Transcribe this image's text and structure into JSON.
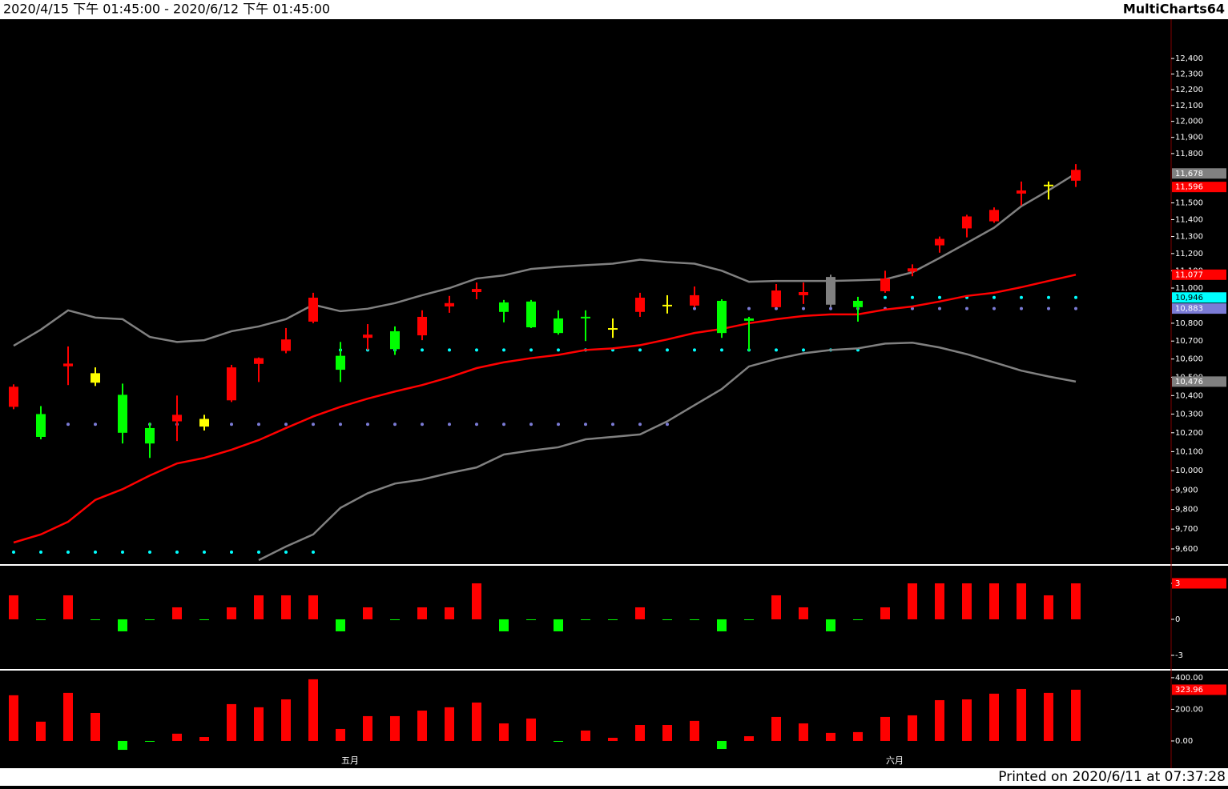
{
  "header": {
    "range": "2020/4/15 下午 01:45:00 - 2020/6/12 下午 01:45:00",
    "brand": "MultiCharts64"
  },
  "footer": "Printed on 2020/6/11 at 07:37:28",
  "chart_data": [
    {
      "type": "candlestick",
      "log_scale": true,
      "categories": [
        null,
        null,
        null,
        null,
        null,
        null,
        null,
        null,
        null,
        null,
        null,
        null,
        "五月",
        null,
        null,
        null,
        null,
        null,
        null,
        null,
        null,
        null,
        null,
        null,
        null,
        null,
        null,
        null,
        null,
        null,
        null,
        null,
        "六月",
        null,
        null,
        null,
        null,
        null,
        null,
        null
      ],
      "open": [
        10339,
        10300,
        10560,
        10522,
        10404,
        10225,
        10261,
        10274,
        10374,
        10573,
        10645,
        10809,
        10618,
        10718,
        10755,
        10732,
        10895,
        10977,
        10918,
        10923,
        10827,
        10832,
        10768,
        10864,
        10900,
        10900,
        10927,
        10827,
        10891,
        10959,
        11064,
        10927,
        10982,
        11095,
        11248,
        11348,
        11390,
        11556,
        11605,
        11634
      ],
      "high": [
        10461,
        10343,
        10670,
        10554,
        10465,
        10254,
        10400,
        10296,
        10568,
        10609,
        10773,
        10973,
        10695,
        10795,
        10782,
        10873,
        10955,
        11032,
        10932,
        10932,
        10873,
        10873,
        10827,
        10973,
        10959,
        11009,
        10936,
        10836,
        11023,
        11032,
        11077,
        10950,
        11100,
        11137,
        11300,
        11429,
        11473,
        11629,
        11629,
        11735
      ],
      "low": [
        10326,
        10165,
        10457,
        10452,
        10143,
        10067,
        10156,
        10212,
        10365,
        10474,
        10632,
        10800,
        10474,
        10650,
        10623,
        10705,
        10859,
        10936,
        10805,
        10773,
        10736,
        10700,
        10718,
        10836,
        10855,
        10891,
        10718,
        10645,
        10891,
        10909,
        10891,
        10809,
        10973,
        11068,
        11205,
        11295,
        11381,
        11485,
        11520,
        11596
      ],
      "close": [
        10448,
        10178,
        10575,
        10470,
        10200,
        10143,
        10296,
        10233,
        10554,
        10605,
        10709,
        10945,
        10541,
        10736,
        10655,
        10836,
        10914,
        10995,
        10864,
        10777,
        10745,
        10823,
        10768,
        10945,
        10900,
        10959,
        10745,
        10814,
        10986,
        10977,
        10905,
        10891,
        11055,
        11114,
        11286,
        11419,
        11458,
        11575,
        11605,
        11700
      ],
      "colors": [
        "#ff0000",
        "#00ff00",
        "#ff0000",
        "#ffff00",
        "#00ff00",
        "#00ff00",
        "#ff0000",
        "#ffff00",
        "#ff0000",
        "#ff0000",
        "#ff0000",
        "#ff0000",
        "#00ff00",
        "#ff0000",
        "#00ff00",
        "#ff0000",
        "#ff0000",
        "#ff0000",
        "#00ff00",
        "#00ff00",
        "#00ff00",
        "#00ff00",
        "#ffff00",
        "#ff0000",
        "#ffff00",
        "#ff0000",
        "#00ff00",
        "#00ff00",
        "#ff0000",
        "#ff0000",
        "#808080",
        "#00ff00",
        "#ff0000",
        "#ff0000",
        "#ff0000",
        "#ff0000",
        "#ff0000",
        "#ff0000",
        "#ffff00",
        "#ff0000"
      ],
      "series": [
        {
          "style": "dots",
          "color": "#00ffff",
          "values": [
            9584,
            9584,
            9584,
            9584,
            9584,
            9584,
            9584,
            9584,
            9584,
            9584,
            9584,
            9584,
            10650,
            10650,
            10650,
            10650,
            10650,
            10650,
            10650,
            10650,
            10650,
            10650,
            10650,
            10650,
            10650,
            10650,
            10650,
            10650,
            10650,
            10650,
            10650,
            10650,
            10946,
            10946,
            10946,
            10946,
            10946,
            10946,
            10946,
            10946
          ]
        },
        {
          "style": "dots",
          "color": "#7b7bd6",
          "values": [
            null,
            null,
            10245,
            10245,
            10245,
            10245,
            10245,
            10245,
            10245,
            10245,
            10245,
            10245,
            10245,
            10245,
            10245,
            10245,
            10245,
            10245,
            10245,
            10245,
            10245,
            10245,
            10245,
            10245,
            10245,
            10883,
            10883,
            10883,
            10883,
            10883,
            10883,
            10883,
            10883,
            10883,
            10883,
            10883,
            10883,
            10883,
            10883,
            10883
          ]
        },
        {
          "style": "line",
          "color": "#808080",
          "values": [
            10674,
            10764,
            10873,
            10832,
            10823,
            10723,
            10695,
            10705,
            10755,
            10782,
            10823,
            10905,
            10868,
            10882,
            10914,
            10959,
            11000,
            11055,
            11073,
            11110,
            11123,
            11132,
            11141,
            11164,
            11150,
            11141,
            11100,
            11036,
            11041,
            11041,
            11041,
            11045,
            11050,
            11091,
            11174,
            11262,
            11352,
            11480,
            11575,
            11678
          ]
        },
        {
          "style": "line",
          "color": "#808080",
          "values": [
            null,
            null,
            null,
            null,
            null,
            null,
            null,
            null,
            null,
            9544,
            9612,
            9673,
            9808,
            9883,
            9933,
            9954,
            9988,
            10017,
            10085,
            10106,
            10123,
            10165,
            10178,
            10191,
            10261,
            10348,
            10435,
            10559,
            10600,
            10632,
            10650,
            10659,
            10686,
            10691,
            10664,
            10627,
            10582,
            10536,
            10504,
            10476
          ]
        },
        {
          "style": "line",
          "color": "#ff0000",
          "values": [
            9632,
            9673,
            9737,
            9849,
            9904,
            9975,
            10038,
            10067,
            10110,
            10161,
            10225,
            10287,
            10339,
            10383,
            10422,
            10457,
            10500,
            10550,
            10582,
            10605,
            10623,
            10650,
            10659,
            10677,
            10709,
            10745,
            10768,
            10800,
            10823,
            10841,
            10850,
            10850,
            10877,
            10895,
            10923,
            10955,
            10973,
            11005,
            11041,
            11077
          ]
        }
      ],
      "ylim": [
        9532,
        12657
      ],
      "yticks": [
        {
          "value": 12400,
          "label": "12,400"
        },
        {
          "value": 12300,
          "label": "12,300"
        },
        {
          "value": 12200,
          "label": "12,200"
        },
        {
          "value": 12100,
          "label": "12,100"
        },
        {
          "value": 12000,
          "label": "12,000"
        },
        {
          "value": 11900,
          "label": "11,900"
        },
        {
          "value": 11800,
          "label": "11,800"
        },
        {
          "value": 11500,
          "label": "11,500"
        },
        {
          "value": 11400,
          "label": "11,400"
        },
        {
          "value": 11300,
          "label": "11,300"
        },
        {
          "value": 11200,
          "label": "11,200"
        },
        {
          "value": 11100,
          "label": "11,100"
        },
        {
          "value": 11000,
          "label": "11,000"
        },
        {
          "value": 10800,
          "label": "10,800"
        },
        {
          "value": 10700,
          "label": "10,700"
        },
        {
          "value": 10600,
          "label": "10,600"
        },
        {
          "value": 10500,
          "label": "10,500"
        },
        {
          "value": 10400,
          "label": "10,400"
        },
        {
          "value": 10300,
          "label": "10,300"
        },
        {
          "value": 10200,
          "label": "10,200"
        },
        {
          "value": 10100,
          "label": "10,100"
        },
        {
          "value": 10000,
          "label": "10,000"
        },
        {
          "value": 9900,
          "label": "9,900"
        },
        {
          "value": 9800,
          "label": "9,800"
        },
        {
          "value": 9700,
          "label": "9,700"
        },
        {
          "value": 9600,
          "label": "9,600"
        }
      ],
      "axis_markers": [
        {
          "value": 11678,
          "label": "11,678",
          "color": "#808080"
        },
        {
          "value": 11596,
          "label": "11,596",
          "color": "#ff0000"
        },
        {
          "value": 11077,
          "label": "11,077",
          "color": "#ff0000"
        },
        {
          "value": 10946,
          "label": "10,946",
          "color": "#00ffff"
        },
        {
          "value": 10883,
          "label": "10,883",
          "color": "#7b7bd6"
        },
        {
          "value": 10476,
          "label": "10,476",
          "color": "#808080"
        }
      ]
    },
    {
      "type": "bar",
      "up_color": "#ff0000",
      "down_color": "#00ff00",
      "values": [
        2,
        0,
        2,
        0,
        -1,
        0,
        1,
        0,
        1,
        2,
        2,
        2,
        -1,
        1,
        0,
        1,
        1,
        3,
        -1,
        0,
        -1,
        0,
        0,
        1,
        0,
        0,
        -1,
        0,
        2,
        1,
        -1,
        0,
        1,
        3,
        3,
        3,
        3,
        3,
        2,
        3
      ],
      "ylim": [
        -4.07,
        4.4
      ],
      "yticks": [
        3,
        0,
        -3
      ],
      "axis_markers": [
        {
          "value": 3,
          "color": "#ff0000"
        }
      ]
    },
    {
      "type": "bar",
      "up_color": "#ff0000",
      "down_color": "#00ff00",
      "values": [
        289,
        122,
        304,
        177,
        -56,
        -5,
        46,
        25,
        233,
        213,
        263,
        390,
        76,
        157,
        157,
        192,
        213,
        243,
        111,
        142,
        0,
        66,
        20,
        101,
        101,
        127,
        -51,
        30,
        152,
        111,
        51,
        56,
        152,
        162,
        258,
        263,
        299,
        329,
        304,
        323.96
      ],
      "ylim": [
        -71,
        435
      ],
      "yticks": [
        {
          "value": 400,
          "label": "400.00"
        },
        {
          "value": 200,
          "label": "200.00"
        },
        {
          "value": 0,
          "label": "0.00"
        }
      ],
      "axis_markers": [
        {
          "value": 323.96,
          "color": "#ff0000"
        }
      ]
    }
  ]
}
